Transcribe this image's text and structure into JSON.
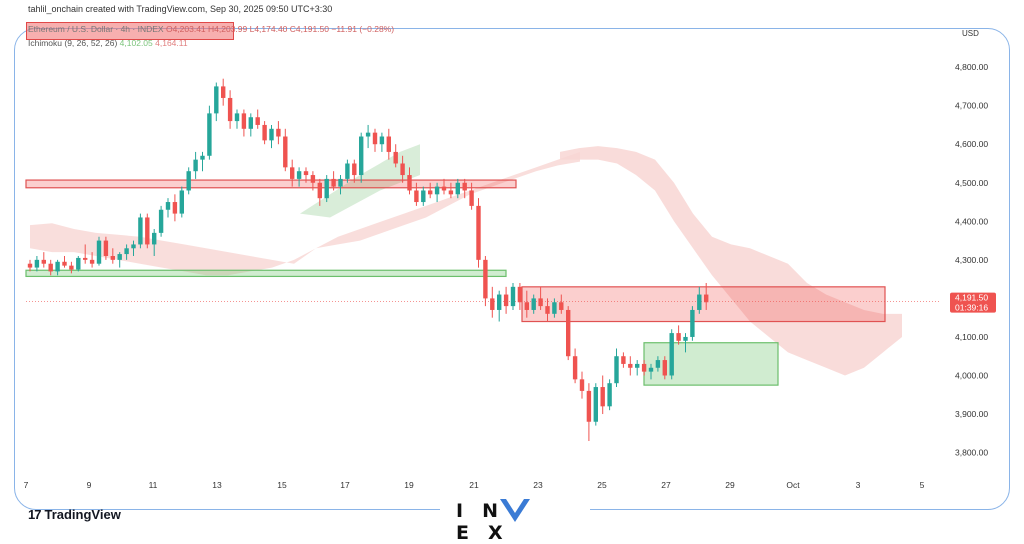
{
  "header": {
    "credit": "tahlil_onchain created with TradingView.com, Sep 30, 2025 09:50 UTC+3:30",
    "symbol_line": "Ethereum / U.S. Dollar · 4h · INDEX",
    "ohlc": "O4,203.41 H4,203.99 L4,174.40 C4,191.50 −11.91 (−0.28%)",
    "indicator": "Ichimoku (9, 26, 52, 26)",
    "indicator_v1": "4,102.05",
    "indicator_v2": "4,164.11"
  },
  "price_axis": {
    "currency": "USD",
    "labels": [
      "4,800.00",
      "4,700.00",
      "4,600.00",
      "4,500.00",
      "4,400.00",
      "4,300.00",
      "4,100.00",
      "4,000.00",
      "3,900.00",
      "3,800.00"
    ],
    "current_price": "4,191.50",
    "countdown": "01:39:16"
  },
  "time_axis": {
    "labels": [
      "7",
      "9",
      "11",
      "13",
      "15",
      "17",
      "19",
      "21",
      "23",
      "25",
      "27",
      "29",
      "Oct",
      "3",
      "5"
    ]
  },
  "branding": {
    "tradingview": "TradingView",
    "watermark": "IN  EX"
  },
  "chart_data": {
    "type": "candlestick",
    "symbol": "Ethereum / U.S. Dollar",
    "interval": "4h",
    "ylim": [
      3760,
      4860
    ],
    "yticks": [
      4800,
      4700,
      4600,
      4500,
      4400,
      4300,
      4100,
      4000,
      3900,
      3800
    ],
    "current_price": 4191.5,
    "colors": {
      "up": "#26a69a",
      "down": "#ef5350",
      "kumo_bear": "#f6c9c6",
      "kumo_bull": "#c9e8c9"
    },
    "candles": [
      [
        4290,
        4300,
        4270,
        4280
      ],
      [
        4280,
        4310,
        4270,
        4300
      ],
      [
        4300,
        4320,
        4280,
        4290
      ],
      [
        4290,
        4300,
        4260,
        4270
      ],
      [
        4270,
        4300,
        4260,
        4295
      ],
      [
        4295,
        4310,
        4280,
        4285
      ],
      [
        4285,
        4295,
        4265,
        4275
      ],
      [
        4275,
        4310,
        4270,
        4305
      ],
      [
        4305,
        4340,
        4290,
        4300
      ],
      [
        4300,
        4320,
        4280,
        4290
      ],
      [
        4290,
        4360,
        4285,
        4350
      ],
      [
        4350,
        4360,
        4300,
        4310
      ],
      [
        4310,
        4330,
        4290,
        4300
      ],
      [
        4300,
        4320,
        4280,
        4315
      ],
      [
        4315,
        4340,
        4300,
        4330
      ],
      [
        4330,
        4350,
        4310,
        4340
      ],
      [
        4340,
        4420,
        4330,
        4410
      ],
      [
        4410,
        4420,
        4330,
        4340
      ],
      [
        4340,
        4380,
        4310,
        4370
      ],
      [
        4370,
        4440,
        4360,
        4430
      ],
      [
        4430,
        4460,
        4410,
        4450
      ],
      [
        4450,
        4470,
        4400,
        4420
      ],
      [
        4420,
        4490,
        4410,
        4480
      ],
      [
        4480,
        4540,
        4470,
        4530
      ],
      [
        4530,
        4580,
        4510,
        4560
      ],
      [
        4560,
        4580,
        4530,
        4570
      ],
      [
        4570,
        4700,
        4560,
        4680
      ],
      [
        4680,
        4760,
        4660,
        4750
      ],
      [
        4750,
        4770,
        4700,
        4720
      ],
      [
        4720,
        4740,
        4640,
        4660
      ],
      [
        4660,
        4690,
        4640,
        4680
      ],
      [
        4680,
        4690,
        4620,
        4640
      ],
      [
        4640,
        4680,
        4620,
        4670
      ],
      [
        4670,
        4690,
        4640,
        4650
      ],
      [
        4650,
        4660,
        4600,
        4610
      ],
      [
        4610,
        4650,
        4590,
        4640
      ],
      [
        4640,
        4660,
        4600,
        4620
      ],
      [
        4620,
        4640,
        4530,
        4540
      ],
      [
        4540,
        4560,
        4490,
        4510
      ],
      [
        4510,
        4540,
        4490,
        4530
      ],
      [
        4530,
        4540,
        4500,
        4520
      ],
      [
        4520,
        4530,
        4480,
        4500
      ],
      [
        4500,
        4510,
        4440,
        4460
      ],
      [
        4460,
        4520,
        4450,
        4510
      ],
      [
        4510,
        4530,
        4480,
        4490
      ],
      [
        4490,
        4520,
        4470,
        4510
      ],
      [
        4510,
        4560,
        4500,
        4550
      ],
      [
        4550,
        4560,
        4500,
        4520
      ],
      [
        4520,
        4630,
        4500,
        4620
      ],
      [
        4620,
        4650,
        4590,
        4630
      ],
      [
        4630,
        4640,
        4580,
        4600
      ],
      [
        4600,
        4630,
        4580,
        4620
      ],
      [
        4620,
        4640,
        4560,
        4580
      ],
      [
        4580,
        4600,
        4540,
        4550
      ],
      [
        4550,
        4570,
        4500,
        4520
      ],
      [
        4520,
        4540,
        4470,
        4480
      ],
      [
        4480,
        4500,
        4440,
        4450
      ],
      [
        4450,
        4490,
        4440,
        4480
      ],
      [
        4480,
        4500,
        4460,
        4470
      ],
      [
        4470,
        4500,
        4450,
        4490
      ],
      [
        4490,
        4510,
        4470,
        4480
      ],
      [
        4480,
        4500,
        4460,
        4470
      ],
      [
        4470,
        4510,
        4460,
        4500
      ],
      [
        4500,
        4510,
        4460,
        4480
      ],
      [
        4480,
        4500,
        4430,
        4440
      ],
      [
        4440,
        4460,
        4280,
        4300
      ],
      [
        4300,
        4310,
        4180,
        4200
      ],
      [
        4200,
        4230,
        4150,
        4170
      ],
      [
        4170,
        4220,
        4140,
        4210
      ],
      [
        4210,
        4230,
        4160,
        4180
      ],
      [
        4180,
        4240,
        4170,
        4230
      ],
      [
        4230,
        4240,
        4170,
        4190
      ],
      [
        4190,
        4220,
        4150,
        4170
      ],
      [
        4170,
        4210,
        4160,
        4200
      ],
      [
        4200,
        4230,
        4170,
        4180
      ],
      [
        4180,
        4200,
        4140,
        4160
      ],
      [
        4160,
        4200,
        4150,
        4190
      ],
      [
        4190,
        4210,
        4160,
        4170
      ],
      [
        4170,
        4180,
        4040,
        4050
      ],
      [
        4050,
        4070,
        3980,
        3990
      ],
      [
        3990,
        4010,
        3940,
        3960
      ],
      [
        3960,
        3980,
        3830,
        3880
      ],
      [
        3880,
        3980,
        3870,
        3970
      ],
      [
        3970,
        4000,
        3900,
        3920
      ],
      [
        3920,
        3990,
        3910,
        3980
      ],
      [
        3980,
        4070,
        3970,
        4050
      ],
      [
        4050,
        4060,
        4020,
        4030
      ],
      [
        4030,
        4050,
        4000,
        4020
      ],
      [
        4020,
        4040,
        4000,
        4030
      ],
      [
        4030,
        4040,
        4000,
        4010
      ],
      [
        4010,
        4030,
        3990,
        4020
      ],
      [
        4020,
        4050,
        4010,
        4040
      ],
      [
        4040,
        4050,
        3990,
        4000
      ],
      [
        4000,
        4120,
        3990,
        4110
      ],
      [
        4110,
        4130,
        4080,
        4090
      ],
      [
        4090,
        4110,
        4060,
        4100
      ],
      [
        4100,
        4180,
        4090,
        4170
      ],
      [
        4170,
        4230,
        4160,
        4210
      ],
      [
        4210,
        4240,
        4170,
        4190
      ]
    ],
    "zones": [
      {
        "kind": "resistance",
        "from": 4487,
        "to": 4507
      },
      {
        "kind": "support",
        "from": 4257,
        "to": 4273
      },
      {
        "kind": "resistance",
        "from": 4140,
        "to": 4230
      },
      {
        "kind": "support",
        "from": 3975,
        "to": 4085
      }
    ]
  }
}
